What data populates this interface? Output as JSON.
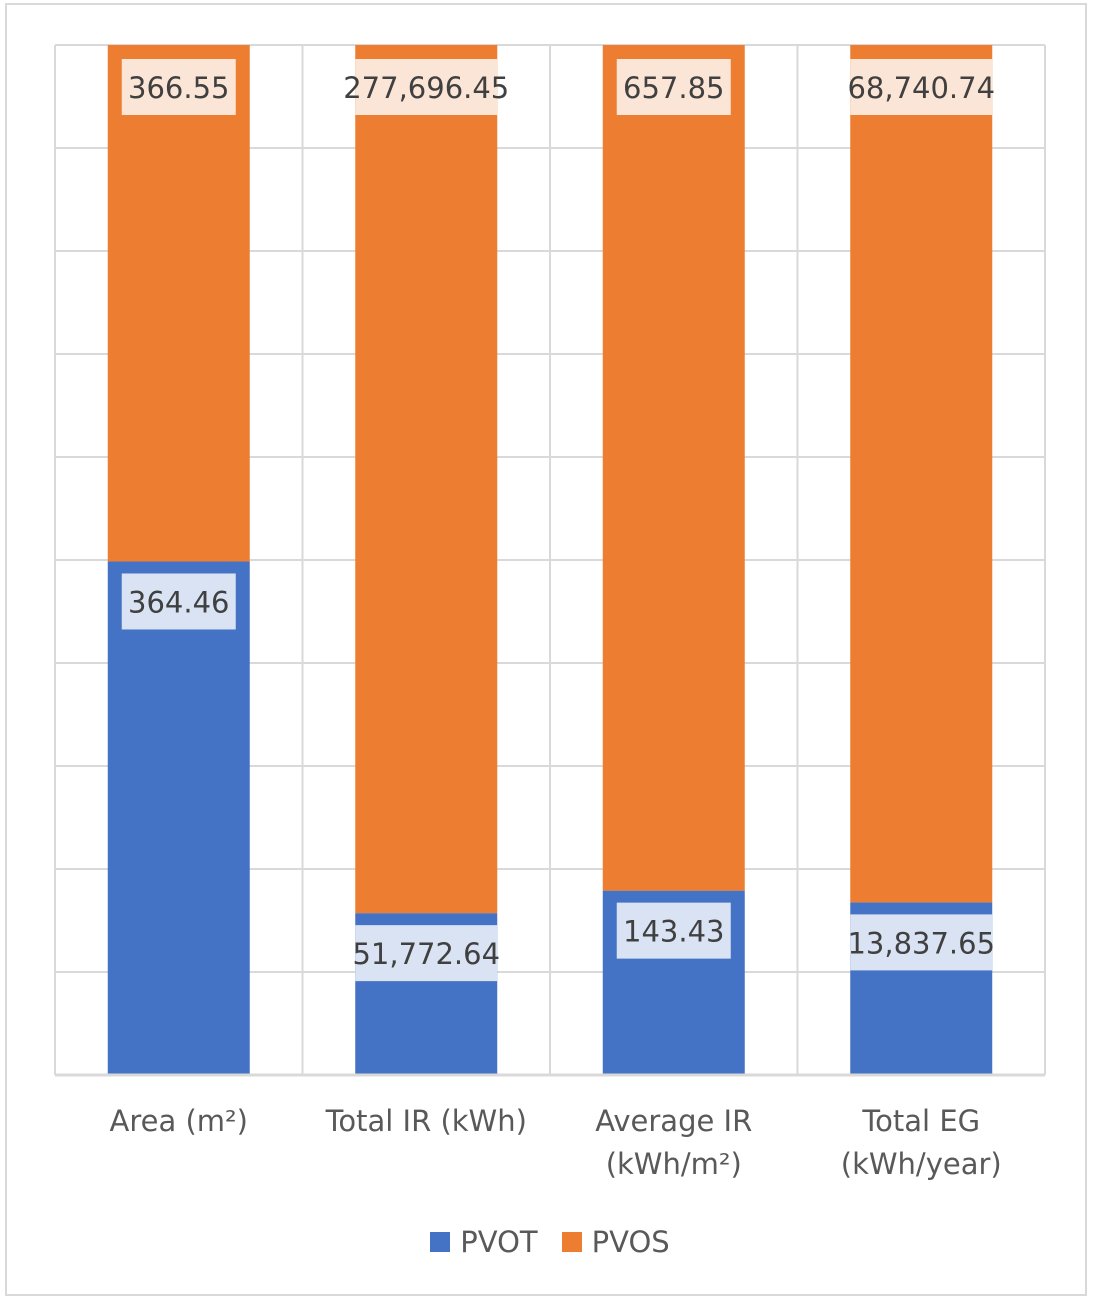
{
  "colors": {
    "PVOT": "#4472c4",
    "PVOS": "#ed7d31",
    "grid": "#d9d9d9",
    "label_bg_PVOT": "#dae3f3",
    "label_bg_PVOS": "#fbe5d6"
  },
  "chart_data": {
    "type": "bar",
    "stacked": "percent",
    "categories": [
      "Area (m²)",
      "Total IR (kWh)",
      "Average IR (kWh/m²)",
      "Total EG (kWh/year)"
    ],
    "category_lines": [
      [
        "Area (m²)"
      ],
      [
        "Total IR (kWh)"
      ],
      [
        "Average IR",
        "(kWh/m²)"
      ],
      [
        "Total EG",
        "(kWh/year)"
      ]
    ],
    "series": [
      {
        "name": "PVOT",
        "values": [
          364.46,
          51772.64,
          143.43,
          13837.65
        ],
        "labels": [
          "364.46",
          "51,772.64",
          "143.43",
          "13,837.65"
        ]
      },
      {
        "name": "PVOS",
        "values": [
          366.55,
          277696.45,
          657.85,
          68740.74
        ],
        "labels": [
          "366.55",
          "277,696.45",
          "657.85",
          "68,740.74"
        ]
      }
    ],
    "ylim": [
      0,
      1
    ],
    "grid": true,
    "legend": "bottom",
    "title": "",
    "xlabel": "",
    "ylabel": ""
  }
}
